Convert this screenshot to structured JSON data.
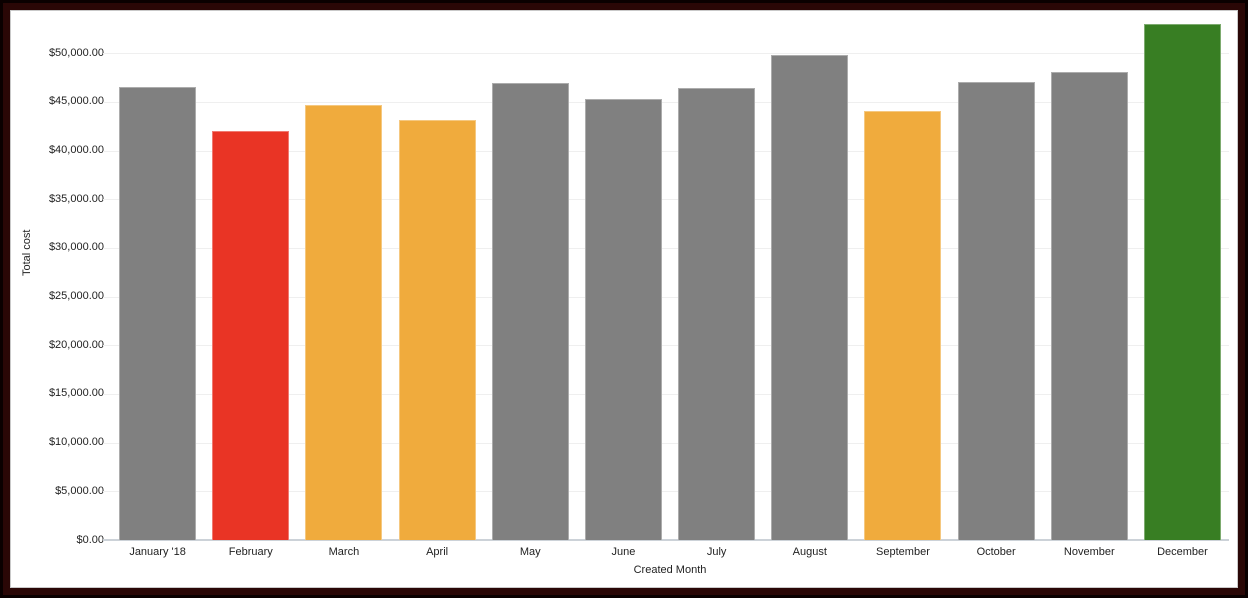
{
  "chart_data": {
    "type": "bar",
    "title": "",
    "xlabel": "Created Month",
    "ylabel": "Total cost",
    "categories": [
      "January '18",
      "February",
      "March",
      "April",
      "May",
      "June",
      "July",
      "August",
      "September",
      "October",
      "November",
      "December"
    ],
    "values": [
      46500,
      42000,
      44700,
      43100,
      46900,
      45300,
      46400,
      49800,
      44100,
      47000,
      48100,
      53000
    ],
    "bar_colors": [
      "#808080",
      "#e93425",
      "#f0ab3d",
      "#f0ab3d",
      "#808080",
      "#808080",
      "#808080",
      "#808080",
      "#f0ab3d",
      "#808080",
      "#808080",
      "#387e23"
    ],
    "y_tick_values": [
      0,
      5000,
      10000,
      15000,
      20000,
      25000,
      30000,
      35000,
      40000,
      45000,
      50000
    ],
    "y_ticks": [
      "$0.00",
      "$5,000.00",
      "$10,000.00",
      "$15,000.00",
      "$20,000.00",
      "$25,000.00",
      "$30,000.00",
      "$35,000.00",
      "$40,000.00",
      "$45,000.00",
      "$50,000.00"
    ],
    "ylim": [
      0,
      53000
    ],
    "grid": true,
    "legend": false
  },
  "colors": {
    "bar_default": "#808080",
    "bar_red": "#e93425",
    "bar_orange": "#f0ab3d",
    "bar_green": "#387e23",
    "frame_border": "#2a0706",
    "gridline": "#efefef",
    "axis_line": "#ccd2d8",
    "text": "#1f1f1f",
    "background": "#ffffff"
  }
}
